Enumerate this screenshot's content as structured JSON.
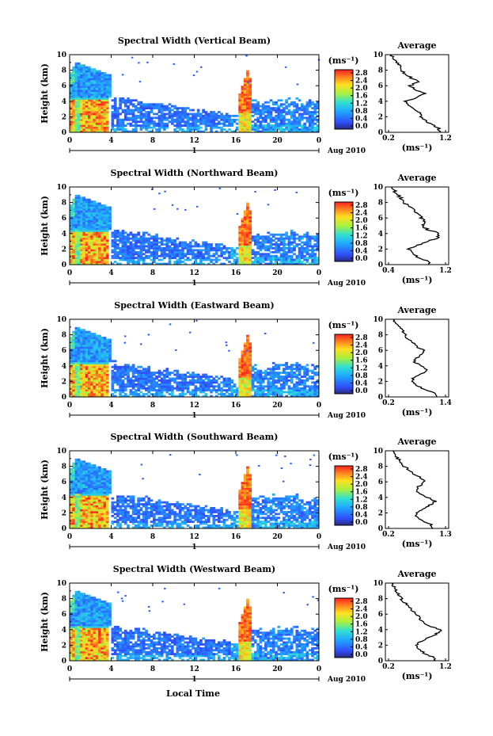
{
  "figure": {
    "x_axis_label": "Local Time",
    "date_label": "Aug 2010",
    "day_label": "1",
    "units_label": "(ms⁻¹)",
    "average_title": "Average",
    "y_axis_label": "Height (km)"
  },
  "chart_data": [
    {
      "type": "heatmap",
      "title": "Spectral Width (Vertical Beam)",
      "ylabel": "Height (km)",
      "xlabel": "",
      "x_ticks": [
        "0",
        "4",
        "8",
        "12",
        "16",
        "20",
        "0"
      ],
      "y_ticks": [
        "0",
        "2",
        "4",
        "6",
        "8",
        "10"
      ],
      "xlim": [
        0,
        24
      ],
      "ylim": [
        0,
        10
      ],
      "colorbar": {
        "label": "(ms⁻¹)",
        "ticks": [
          "2.8",
          "2.4",
          "2.0",
          "1.6",
          "1.2",
          "0.8",
          "0.4",
          "0.0"
        ],
        "range": [
          0,
          2.8
        ]
      },
      "average_profile": {
        "title": "Average",
        "xlabel": "(ms⁻¹)",
        "x_ticks": [
          "0.2",
          "1.2"
        ],
        "xlim": [
          0.2,
          1.2
        ],
        "heights": [
          0,
          0.5,
          1,
          1.5,
          2,
          2.5,
          3,
          3.5,
          4,
          4.5,
          5,
          5.5,
          6,
          6.5,
          7,
          7.5,
          8,
          8.5,
          9,
          9.5,
          10
        ],
        "values": [
          1.1,
          1.08,
          0.95,
          0.85,
          0.78,
          0.75,
          0.62,
          0.55,
          0.5,
          0.7,
          0.82,
          0.68,
          0.58,
          0.72,
          0.6,
          0.5,
          0.42,
          0.4,
          0.36,
          0.3,
          0.25
        ]
      }
    },
    {
      "type": "heatmap",
      "title": "Spectral Width (Northward Beam)",
      "ylabel": "Height (km)",
      "xlabel": "",
      "x_ticks": [
        "0",
        "4",
        "8",
        "12",
        "16",
        "20",
        "0"
      ],
      "y_ticks": [
        "0",
        "2",
        "4",
        "6",
        "8",
        "10"
      ],
      "xlim": [
        0,
        24
      ],
      "ylim": [
        0,
        10
      ],
      "colorbar": {
        "label": "(ms⁻¹)",
        "ticks": [
          "2.8",
          "2.4",
          "2.0",
          "1.6",
          "1.2",
          "0.8",
          "0.4",
          "0.0"
        ],
        "range": [
          0,
          2.8
        ]
      },
      "average_profile": {
        "title": "Average",
        "xlabel": "(ms⁻¹)",
        "x_ticks": [
          "0.4",
          "1.2"
        ],
        "xlim": [
          0.4,
          1.2
        ],
        "heights": [
          0,
          0.5,
          1,
          1.5,
          2,
          2.5,
          3,
          3.5,
          4,
          4.5,
          5,
          5.5,
          6,
          6.5,
          7,
          7.5,
          8,
          8.5,
          9,
          9.5,
          10
        ],
        "values": [
          0.98,
          0.95,
          0.8,
          0.72,
          0.68,
          0.8,
          0.95,
          1.1,
          1.12,
          0.95,
          0.88,
          0.9,
          0.86,
          0.82,
          0.75,
          0.7,
          0.62,
          0.58,
          0.52,
          0.48,
          0.45
        ]
      }
    },
    {
      "type": "heatmap",
      "title": "Spectral Width (Eastward Beam)",
      "ylabel": "Height (km)",
      "xlabel": "",
      "x_ticks": [
        "0",
        "4",
        "8",
        "12",
        "16",
        "20",
        "0"
      ],
      "y_ticks": [
        "0",
        "2",
        "4",
        "6",
        "8",
        "10"
      ],
      "xlim": [
        0,
        24
      ],
      "ylim": [
        0,
        10
      ],
      "colorbar": {
        "label": "(ms⁻¹)",
        "ticks": [
          "2.8",
          "2.4",
          "2.0",
          "1.6",
          "1.2",
          "0.8",
          "0.4",
          "0.0"
        ],
        "range": [
          0,
          2.8
        ]
      },
      "average_profile": {
        "title": "Average",
        "xlabel": "(ms⁻¹)",
        "x_ticks": [
          "0.2",
          "1.4"
        ],
        "xlim": [
          0.2,
          1.4
        ],
        "heights": [
          0,
          0.5,
          1,
          1.5,
          2,
          2.5,
          3,
          3.5,
          4,
          4.5,
          5,
          5.5,
          6,
          6.5,
          7,
          7.5,
          8,
          8.5,
          9,
          9.5,
          10
        ],
        "values": [
          1.2,
          1.15,
          0.95,
          0.8,
          0.7,
          0.72,
          0.9,
          1.0,
          0.88,
          0.74,
          0.78,
          0.92,
          0.95,
          0.78,
          0.72,
          0.6,
          0.55,
          0.5,
          0.42,
          0.35,
          0.3
        ]
      }
    },
    {
      "type": "heatmap",
      "title": "Spectral Width (Southward Beam)",
      "ylabel": "Height (km)",
      "xlabel": "",
      "x_ticks": [
        "0",
        "4",
        "8",
        "12",
        "16",
        "20",
        "0"
      ],
      "y_ticks": [
        "0",
        "2",
        "4",
        "6",
        "8",
        "10"
      ],
      "xlim": [
        0,
        24
      ],
      "ylim": [
        0,
        10
      ],
      "colorbar": {
        "label": "(ms⁻¹)",
        "ticks": [
          "2.8",
          "2.4",
          "2.0",
          "1.6",
          "1.2",
          "0.8",
          "0.4",
          "0.0"
        ],
        "range": [
          0,
          2.8
        ]
      },
      "average_profile": {
        "title": "Average",
        "xlabel": "(ms⁻¹)",
        "x_ticks": [
          "0.2",
          "1.3"
        ],
        "xlim": [
          0.2,
          1.3
        ],
        "heights": [
          0,
          0.5,
          1,
          1.5,
          2,
          2.5,
          3,
          3.5,
          4,
          4.5,
          5,
          5.5,
          6,
          6.5,
          7,
          7.5,
          8,
          8.5,
          9,
          9.5,
          10
        ],
        "values": [
          1.05,
          1.02,
          0.85,
          0.75,
          0.72,
          0.85,
          1.0,
          1.1,
          0.95,
          0.78,
          0.72,
          0.8,
          0.9,
          0.82,
          0.7,
          0.6,
          0.5,
          0.45,
          0.38,
          0.32,
          0.28
        ]
      }
    },
    {
      "type": "heatmap",
      "title": "Spectral Width (Westward Beam)",
      "ylabel": "Height (km)",
      "xlabel": "Local Time",
      "x_ticks": [
        "0",
        "4",
        "8",
        "12",
        "16",
        "20",
        "0"
      ],
      "y_ticks": [
        "0",
        "2",
        "4",
        "6",
        "8",
        "10"
      ],
      "xlim": [
        0,
        24
      ],
      "ylim": [
        0,
        10
      ],
      "colorbar": {
        "label": "(ms⁻¹)",
        "ticks": [
          "2.8",
          "2.4",
          "2.0",
          "1.6",
          "1.2",
          "0.8",
          "0.4",
          "0.0"
        ],
        "range": [
          0,
          2.8
        ]
      },
      "average_profile": {
        "title": "Average",
        "xlabel": "(ms⁻¹)",
        "x_ticks": [
          "0.2",
          "1.2"
        ],
        "xlim": [
          0.2,
          1.2
        ],
        "heights": [
          0,
          0.5,
          1,
          1.5,
          2,
          2.5,
          3,
          3.5,
          4,
          4.5,
          5,
          5.5,
          6,
          6.5,
          7,
          7.5,
          8,
          8.5,
          9,
          9.5,
          10
        ],
        "values": [
          1.0,
          0.98,
          0.82,
          0.72,
          0.68,
          0.78,
          0.92,
          1.05,
          1.12,
          0.9,
          0.8,
          0.75,
          0.7,
          0.62,
          0.55,
          0.48,
          0.42,
          0.38,
          0.34,
          0.3,
          0.26
        ]
      }
    }
  ]
}
